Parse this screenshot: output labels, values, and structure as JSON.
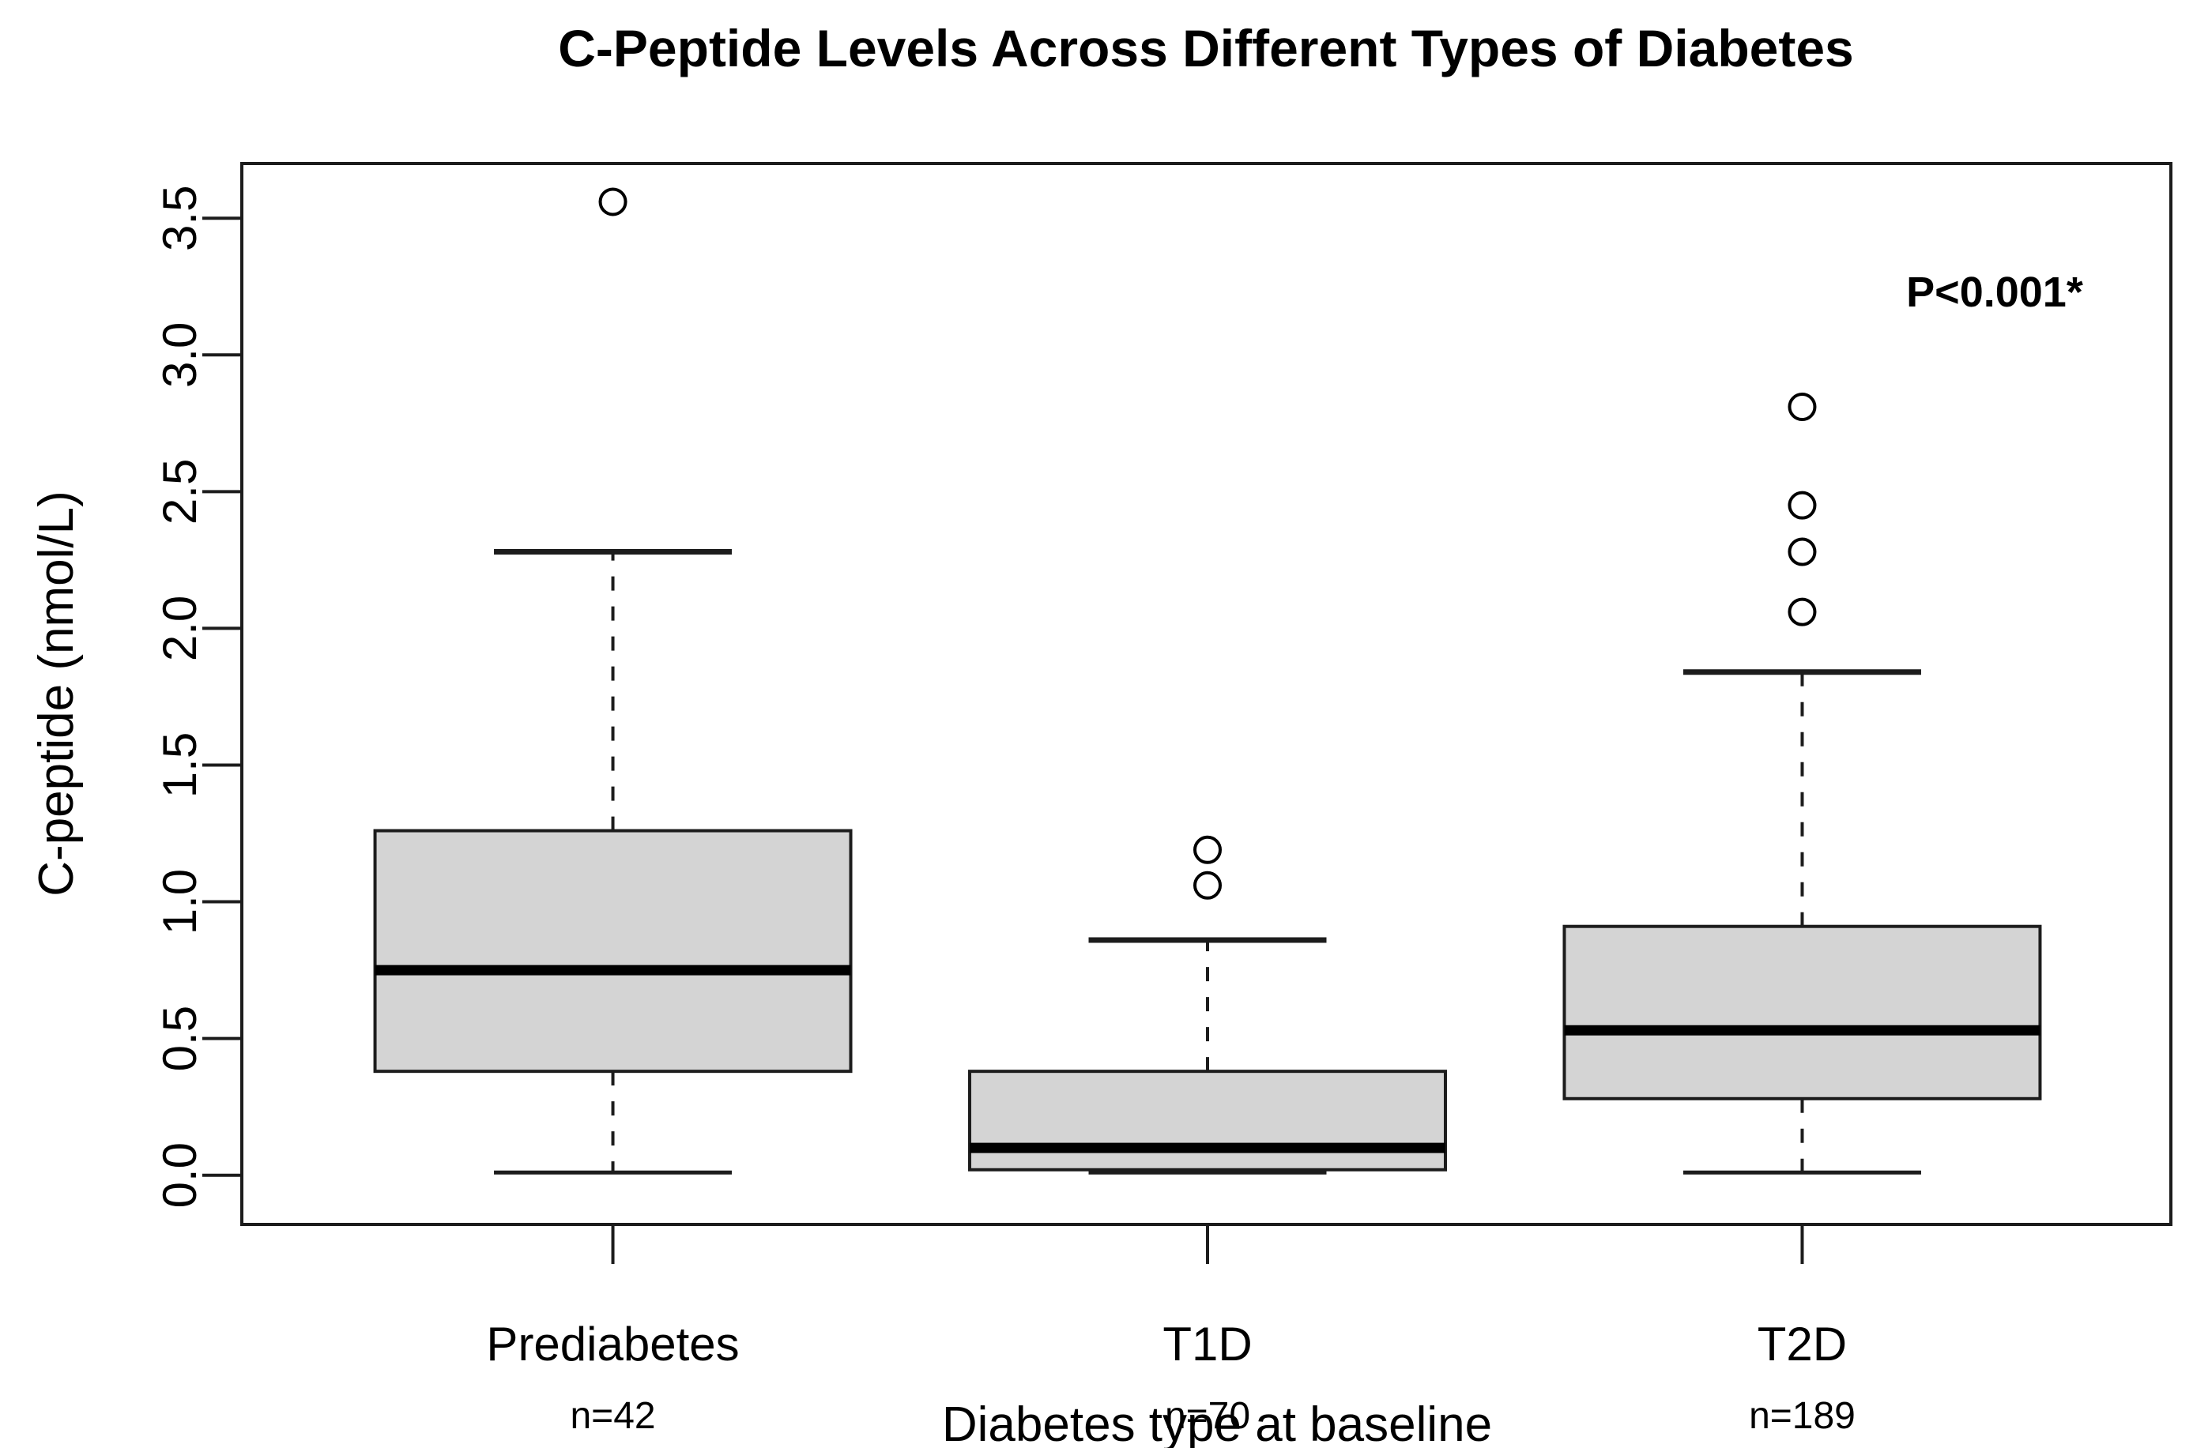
{
  "title": "C-Peptide Levels Across Different Types of Diabetes",
  "chart_data": {
    "type": "boxplot",
    "title": "C-Peptide Levels Across Different Types of Diabetes",
    "xlabel": "Diabetes type at baseline",
    "ylabel": "C-peptide (nmol/L)",
    "ylim": [
      -0.18,
      3.7
    ],
    "xlim": [
      0.376,
      3.62
    ],
    "grid": false,
    "y_tick_labels": [
      "0.0",
      "0.5",
      "1.0",
      "1.5",
      "2.0",
      "2.5",
      "3.0",
      "3.5"
    ],
    "y_ticks": [
      0.0,
      0.5,
      1.0,
      1.5,
      2.0,
      2.5,
      3.0,
      3.5
    ],
    "categories": [
      "Prediabetes",
      "T1D",
      "T2D"
    ],
    "n_labels": [
      "n=42",
      "n=70",
      "n=189"
    ],
    "series": [
      {
        "name": "Prediabetes",
        "n_label": "n=42",
        "position": 1,
        "whisker_low": 0.01,
        "q1": 0.38,
        "median": 0.75,
        "q3": 1.26,
        "whisker_high": 2.28,
        "outliers": [
          3.56
        ]
      },
      {
        "name": "T1D",
        "n_label": "n=70",
        "position": 2,
        "whisker_low": 0.01,
        "q1": 0.02,
        "median": 0.1,
        "q3": 0.38,
        "whisker_high": 0.86,
        "outliers": [
          1.06,
          1.19
        ]
      },
      {
        "name": "T2D",
        "n_label": "n=189",
        "position": 3,
        "whisker_low": 0.01,
        "q1": 0.28,
        "median": 0.53,
        "q3": 0.91,
        "whisker_high": 1.84,
        "outliers": [
          2.06,
          2.28,
          2.45,
          2.81
        ]
      }
    ],
    "box_width": 0.8,
    "cap_width": 0.4,
    "p_annotation": {
      "text": "P<0.001*",
      "x": 3.32,
      "y": 3.27
    },
    "colors": {
      "box_fill": "#d4d4d4",
      "line": "#1c1c1c",
      "median": "#000000",
      "background": "#ffffff"
    }
  }
}
